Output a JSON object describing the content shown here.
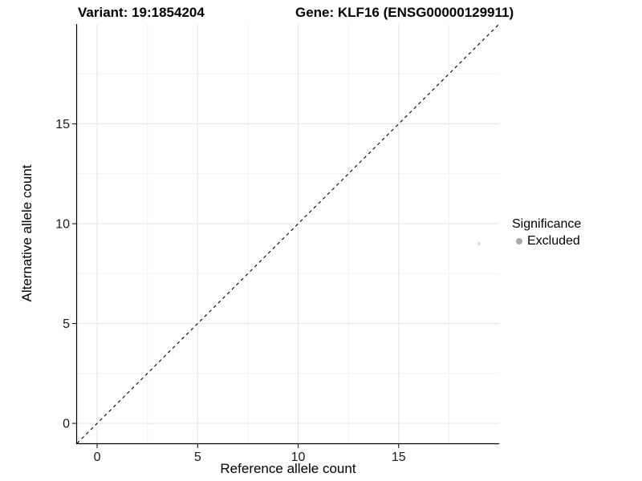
{
  "titles": {
    "variant": "Variant: 19:1854204",
    "gene": "Gene: KLF16 (ENSG00000129911)"
  },
  "chart_data": {
    "type": "scatter",
    "title": "Variant: 19:1854204  Gene: KLF16 (ENSG00000129911)",
    "xlabel": "Reference allele count",
    "ylabel": "Alternative allele count",
    "xlim": [
      -1,
      20
    ],
    "ylim": [
      -1,
      20
    ],
    "x_breaks": [
      0,
      5,
      10,
      15
    ],
    "y_breaks": [
      0,
      5,
      10,
      15
    ],
    "x_minor_breaks": [
      2.5,
      7.5,
      12.5,
      17.5
    ],
    "y_minor_breaks": [
      2.5,
      7.5,
      12.5,
      17.5
    ],
    "grid": true,
    "identity_line": {
      "style": "dashed",
      "slope": 1,
      "intercept": 0,
      "color": "#000000"
    },
    "points": [
      {
        "x": 19,
        "y": 9,
        "significance": "Excluded",
        "color": "#d0d0d0",
        "radius": 1.8
      }
    ],
    "legend": {
      "position": "right",
      "title": "Significance",
      "items": [
        {
          "label": "Excluded",
          "color": "#a9a9a9"
        }
      ]
    },
    "colors": {
      "background": "#ffffff",
      "major_grid": "#e4e4e4",
      "minor_grid": "#f1f1f1",
      "axis_line": "#000000",
      "tick_mark": "#1a1a1a",
      "tick_label": "#1a1a1a"
    }
  }
}
